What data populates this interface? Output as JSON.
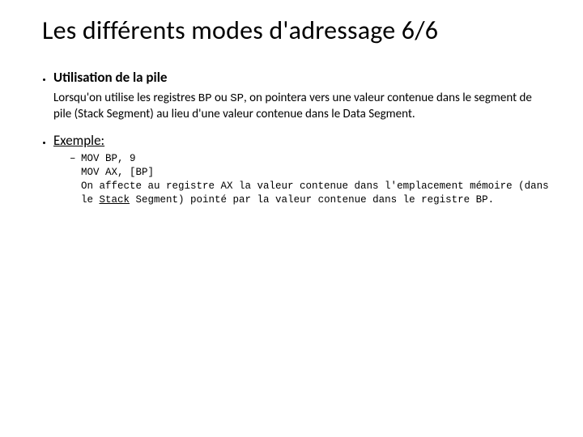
{
  "slide": {
    "title": "Les différents modes d'adressage 6/6",
    "bullets": [
      {
        "heading": "Utilisation de la pile",
        "heading_style": "bold",
        "paragraph_parts": {
          "p1": "Lorsqu'on utilise les registres ",
          "code1": "BP",
          "p2": " ou ",
          "code2": "SP",
          "p3": ", on pointera vers une valeur contenue dans le segment de pile (Stack Segment) au lieu d'une valeur contenue dans le Data Segment."
        }
      },
      {
        "heading": "Exemple:",
        "heading_style": "underline",
        "example": {
          "line1": "MOV BP, 9",
          "line2": "MOV AX, [BP]",
          "desc_pre": "On affecte au registre AX la valeur contenue dans l'emplacement mémoire (dans le ",
          "desc_under": "Stack",
          "desc_post": " Segment) pointé par la valeur contenue dans le registre BP."
        }
      }
    ]
  },
  "style": {
    "background_color": "#ffffff",
    "text_color": "#000000",
    "title_fontsize": 32,
    "heading_fontsize": 17,
    "body_fontsize": 15,
    "code_fontsize": 12.5,
    "font_family_body": "Calibri",
    "font_family_mono": "Courier New"
  }
}
